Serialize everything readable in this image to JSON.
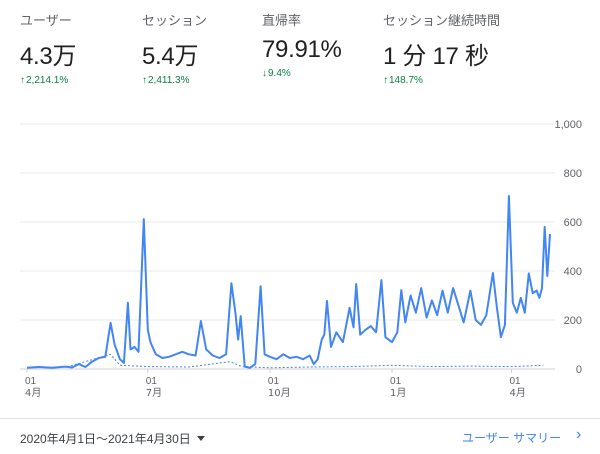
{
  "metrics": [
    {
      "label": "ユーザー",
      "value": "4.3万",
      "delta": "2,214.1%",
      "direction": "up"
    },
    {
      "label": "セッション",
      "value": "5.4万",
      "delta": "2,411.3%",
      "direction": "up"
    },
    {
      "label": "直帰率",
      "value": "79.91%",
      "delta": "9.4%",
      "direction": "down"
    },
    {
      "label": "セッション継続時間",
      "value": "1 分 17 秒",
      "delta": "148.7%",
      "direction": "up"
    }
  ],
  "footer": {
    "date_range": "2020年4月1日～2021年4月30日",
    "summary_link": "ユーザー サマリー"
  },
  "colors": {
    "line": "#4285f4",
    "positive": "#0b8043",
    "grid": "#e8e8e8"
  },
  "chart_data": {
    "type": "line",
    "ylim": [
      0,
      1000
    ],
    "yticks": [
      "0",
      "200",
      "400",
      "600",
      "800",
      "1,000"
    ],
    "xticks": [
      {
        "date": "2020-04-01",
        "day": "01",
        "month": "4月"
      },
      {
        "date": "2020-07-01",
        "day": "01",
        "month": "7月"
      },
      {
        "date": "2020-10-01",
        "day": "01",
        "month": "10月"
      },
      {
        "date": "2021-01-01",
        "day": "01",
        "month": "1月"
      },
      {
        "date": "2021-04-01",
        "day": "01",
        "month": "4月"
      }
    ],
    "xrange": [
      "2020-04-01",
      "2021-04-30"
    ],
    "grid": true,
    "series": [
      {
        "style": "solid",
        "points": [
          [
            "2020-04-01",
            5
          ],
          [
            "2020-04-10",
            8
          ],
          [
            "2020-04-20",
            5
          ],
          [
            "2020-04-30",
            10
          ],
          [
            "2020-05-05",
            6
          ],
          [
            "2020-05-10",
            20
          ],
          [
            "2020-05-15",
            8
          ],
          [
            "2020-05-20",
            30
          ],
          [
            "2020-05-25",
            45
          ],
          [
            "2020-05-30",
            50
          ],
          [
            "2020-06-03",
            188
          ],
          [
            "2020-06-06",
            100
          ],
          [
            "2020-06-10",
            40
          ],
          [
            "2020-06-13",
            25
          ],
          [
            "2020-06-16",
            270
          ],
          [
            "2020-06-18",
            80
          ],
          [
            "2020-06-21",
            90
          ],
          [
            "2020-06-24",
            70
          ],
          [
            "2020-06-28",
            612
          ],
          [
            "2020-07-01",
            160
          ],
          [
            "2020-07-03",
            110
          ],
          [
            "2020-07-07",
            60
          ],
          [
            "2020-07-12",
            45
          ],
          [
            "2020-07-17",
            50
          ],
          [
            "2020-07-22",
            60
          ],
          [
            "2020-07-27",
            70
          ],
          [
            "2020-08-01",
            60
          ],
          [
            "2020-08-06",
            55
          ],
          [
            "2020-08-10",
            196
          ],
          [
            "2020-08-14",
            80
          ],
          [
            "2020-08-19",
            55
          ],
          [
            "2020-08-24",
            45
          ],
          [
            "2020-08-29",
            60
          ],
          [
            "2020-09-02",
            350
          ],
          [
            "2020-09-05",
            230
          ],
          [
            "2020-09-07",
            120
          ],
          [
            "2020-09-09",
            216
          ],
          [
            "2020-09-12",
            10
          ],
          [
            "2020-09-16",
            5
          ],
          [
            "2020-09-20",
            20
          ],
          [
            "2020-09-24",
            338
          ],
          [
            "2020-09-27",
            60
          ],
          [
            "2020-10-01",
            50
          ],
          [
            "2020-10-06",
            40
          ],
          [
            "2020-10-11",
            60
          ],
          [
            "2020-10-16",
            45
          ],
          [
            "2020-10-21",
            50
          ],
          [
            "2020-10-26",
            40
          ],
          [
            "2020-10-31",
            55
          ],
          [
            "2020-11-03",
            20
          ],
          [
            "2020-11-06",
            40
          ],
          [
            "2020-11-09",
            120
          ],
          [
            "2020-11-11",
            140
          ],
          [
            "2020-11-13",
            278
          ],
          [
            "2020-11-16",
            90
          ],
          [
            "2020-11-20",
            150
          ],
          [
            "2020-11-25",
            110
          ],
          [
            "2020-11-30",
            250
          ],
          [
            "2020-12-03",
            170
          ],
          [
            "2020-12-05",
            347
          ],
          [
            "2020-12-08",
            140
          ],
          [
            "2020-12-12",
            160
          ],
          [
            "2020-12-16",
            175
          ],
          [
            "2020-12-20",
            150
          ],
          [
            "2020-12-24",
            363
          ],
          [
            "2020-12-27",
            130
          ],
          [
            "2021-01-01",
            110
          ],
          [
            "2021-01-05",
            150
          ],
          [
            "2021-01-08",
            322
          ],
          [
            "2021-01-11",
            190
          ],
          [
            "2021-01-15",
            300
          ],
          [
            "2021-01-19",
            230
          ],
          [
            "2021-01-23",
            330
          ],
          [
            "2021-01-27",
            210
          ],
          [
            "2021-01-31",
            280
          ],
          [
            "2021-02-04",
            220
          ],
          [
            "2021-02-08",
            320
          ],
          [
            "2021-02-12",
            230
          ],
          [
            "2021-02-16",
            330
          ],
          [
            "2021-02-20",
            260
          ],
          [
            "2021-02-24",
            190
          ],
          [
            "2021-03-01",
            320
          ],
          [
            "2021-03-05",
            200
          ],
          [
            "2021-03-09",
            180
          ],
          [
            "2021-03-13",
            220
          ],
          [
            "2021-03-18",
            392
          ],
          [
            "2021-03-21",
            250
          ],
          [
            "2021-03-24",
            130
          ],
          [
            "2021-03-27",
            180
          ],
          [
            "2021-03-30",
            706
          ],
          [
            "2021-04-02",
            270
          ],
          [
            "2021-04-05",
            230
          ],
          [
            "2021-04-08",
            290
          ],
          [
            "2021-04-11",
            230
          ],
          [
            "2021-04-14",
            390
          ],
          [
            "2021-04-17",
            310
          ],
          [
            "2021-04-20",
            320
          ],
          [
            "2021-04-22",
            290
          ],
          [
            "2021-04-24",
            330
          ],
          [
            "2021-04-26",
            580
          ],
          [
            "2021-04-28",
            380
          ],
          [
            "2021-04-30",
            551
          ]
        ]
      },
      {
        "style": "dashed",
        "points": [
          [
            "2020-04-01",
            5
          ],
          [
            "2020-05-01",
            8
          ],
          [
            "2020-06-03",
            60
          ],
          [
            "2020-06-10",
            15
          ],
          [
            "2020-07-01",
            10
          ],
          [
            "2020-08-01",
            8
          ],
          [
            "2020-09-01",
            30
          ],
          [
            "2020-09-10",
            10
          ],
          [
            "2020-10-01",
            5
          ],
          [
            "2020-11-01",
            8
          ],
          [
            "2020-12-01",
            10
          ],
          [
            "2021-01-01",
            15
          ],
          [
            "2021-02-01",
            10
          ],
          [
            "2021-03-01",
            12
          ],
          [
            "2021-04-01",
            10
          ],
          [
            "2021-04-25",
            15
          ]
        ]
      }
    ]
  }
}
